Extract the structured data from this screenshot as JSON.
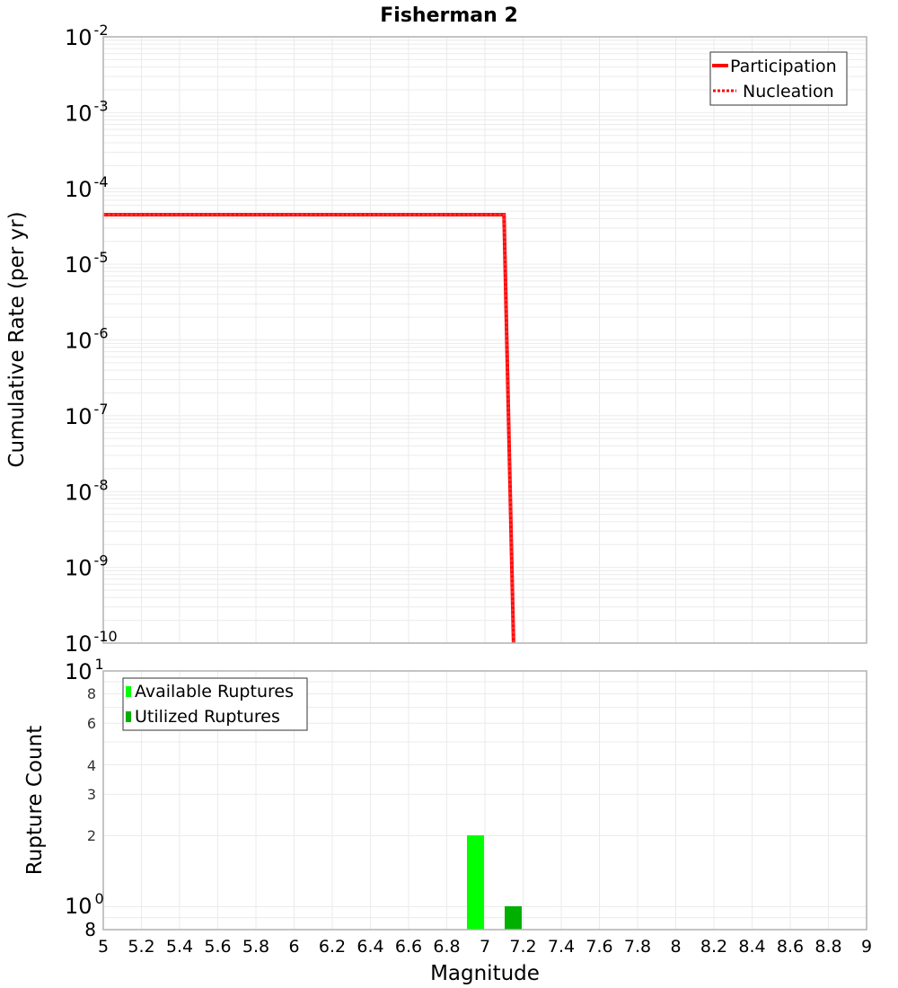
{
  "chart_data": [
    {
      "type": "line",
      "title": "Fisherman 2",
      "xlabel": "Magnitude",
      "ylabel": "Cumulative Rate (per yr)",
      "yscale": "log",
      "xlim": [
        5,
        9
      ],
      "ylim": [
        1e-10,
        0.01
      ],
      "grid": true,
      "legend_position": "top-right",
      "y_ticks": [
        "10^-2",
        "10^-3",
        "10^-4",
        "10^-5",
        "10^-6",
        "10^-7",
        "10^-8",
        "10^-9",
        "10^-10"
      ],
      "series": [
        {
          "name": "Participation",
          "style": "solid",
          "color": "#ff0000",
          "x": [
            5.0,
            7.1,
            7.15
          ],
          "y": [
            4.5e-05,
            4.5e-05,
            1e-10
          ]
        },
        {
          "name": "Nucleation",
          "style": "dotted",
          "color": "#ff0000",
          "x": [
            5.0,
            7.1,
            7.15
          ],
          "y": [
            4.5e-05,
            4.5e-05,
            1e-10
          ]
        }
      ]
    },
    {
      "type": "bar",
      "xlabel": "Magnitude",
      "ylabel": "Rupture Count",
      "yscale": "log",
      "xlim": [
        5,
        9
      ],
      "ylim": [
        0.8,
        10
      ],
      "grid": true,
      "legend_position": "top-left",
      "y_ticks": [
        "10^1",
        "8",
        "6",
        "4",
        "3",
        "2",
        "10^0",
        "8"
      ],
      "x_ticks": [
        "5",
        "5.2",
        "5.4",
        "5.6",
        "5.8",
        "6",
        "6.2",
        "6.4",
        "6.6",
        "6.8",
        "7",
        "7.2",
        "7.4",
        "7.6",
        "7.8",
        "8",
        "8.2",
        "8.4",
        "8.6",
        "8.8",
        "9"
      ],
      "series": [
        {
          "name": "Available Ruptures",
          "color": "#00ff00",
          "x": [
            6.95
          ],
          "values": [
            2
          ]
        },
        {
          "name": "Utilized Ruptures",
          "color": "#00b000",
          "x": [
            7.15
          ],
          "values": [
            1
          ]
        }
      ]
    }
  ],
  "title": "Fisherman 2",
  "top": {
    "ylabel": "Cumulative Rate (per yr)",
    "legend": [
      "Participation",
      "Nucleation"
    ],
    "ticks": [
      {
        "base": "10",
        "exp": "-2"
      },
      {
        "base": "10",
        "exp": "-3"
      },
      {
        "base": "10",
        "exp": "-4"
      },
      {
        "base": "10",
        "exp": "-5"
      },
      {
        "base": "10",
        "exp": "-6"
      },
      {
        "base": "10",
        "exp": "-7"
      },
      {
        "base": "10",
        "exp": "-8"
      },
      {
        "base": "10",
        "exp": "-9"
      },
      {
        "base": "10",
        "exp": "-10"
      }
    ]
  },
  "bottom": {
    "ylabel": "Rupture Count",
    "legend": [
      "Available Ruptures",
      "Utilized Ruptures"
    ],
    "tick_top": {
      "base": "10",
      "exp": "1"
    },
    "tick_one": {
      "base": "10",
      "exp": "0"
    },
    "minor_ticks": [
      "8",
      "6",
      "4",
      "3",
      "2"
    ],
    "tick_bottom": "8"
  },
  "xaxis": {
    "label": "Magnitude",
    "ticks": [
      "5",
      "5.2",
      "5.4",
      "5.6",
      "5.8",
      "6",
      "6.2",
      "6.4",
      "6.6",
      "6.8",
      "7",
      "7.2",
      "7.4",
      "7.6",
      "7.8",
      "8",
      "8.2",
      "8.4",
      "8.6",
      "8.8",
      "9"
    ]
  },
  "colors": {
    "line": "#ff0000",
    "available": "#00ff00",
    "utilized": "#00b000",
    "grid": "#ebebeb",
    "frame": "#b0b0b0"
  }
}
